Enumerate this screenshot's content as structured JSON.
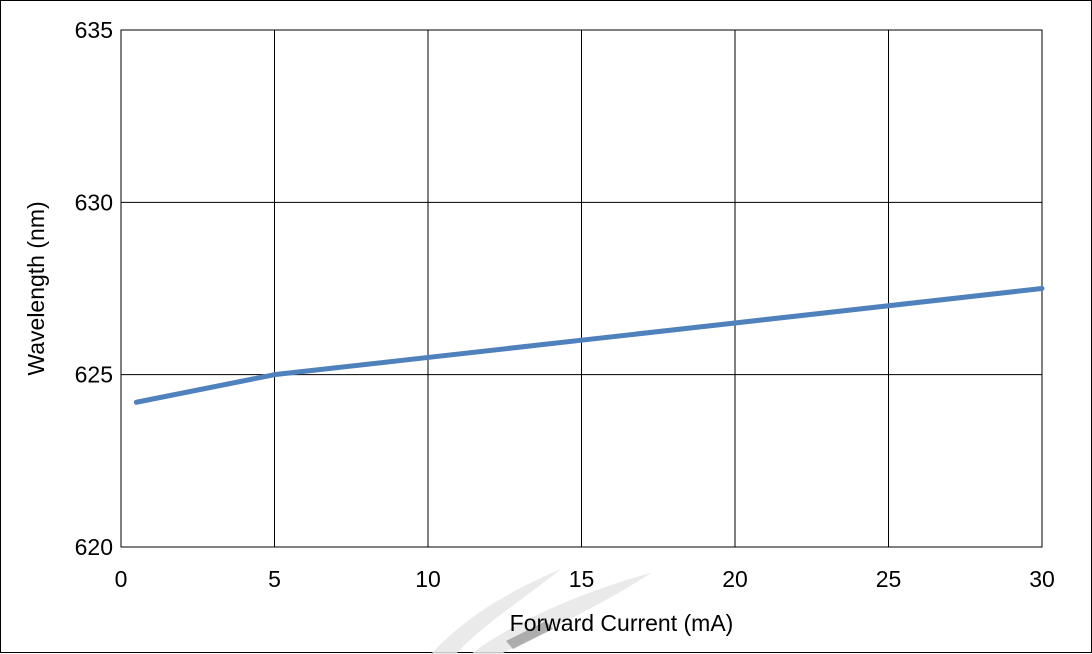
{
  "chart_data": {
    "type": "line",
    "title": "",
    "xlabel": "Forward Current (mA)",
    "ylabel": "Wavelength (nm)",
    "xlim": [
      0,
      30
    ],
    "ylim": [
      620,
      635
    ],
    "x_ticks": [
      0,
      5,
      10,
      15,
      20,
      25,
      30
    ],
    "y_ticks": [
      620,
      625,
      630,
      635
    ],
    "x_tick_labels": [
      "0",
      "5",
      "10",
      "15",
      "20",
      "25",
      "30"
    ],
    "y_tick_labels": [
      "620",
      "625",
      "630",
      "635"
    ],
    "grid": true,
    "legend": "none",
    "series": [
      {
        "color": "#4F81BD",
        "x": [
          0.5,
          5,
          10,
          15,
          20,
          25,
          30
        ],
        "y": [
          624.2,
          625.0,
          625.5,
          626.0,
          626.5,
          627.0,
          627.5
        ]
      }
    ]
  }
}
